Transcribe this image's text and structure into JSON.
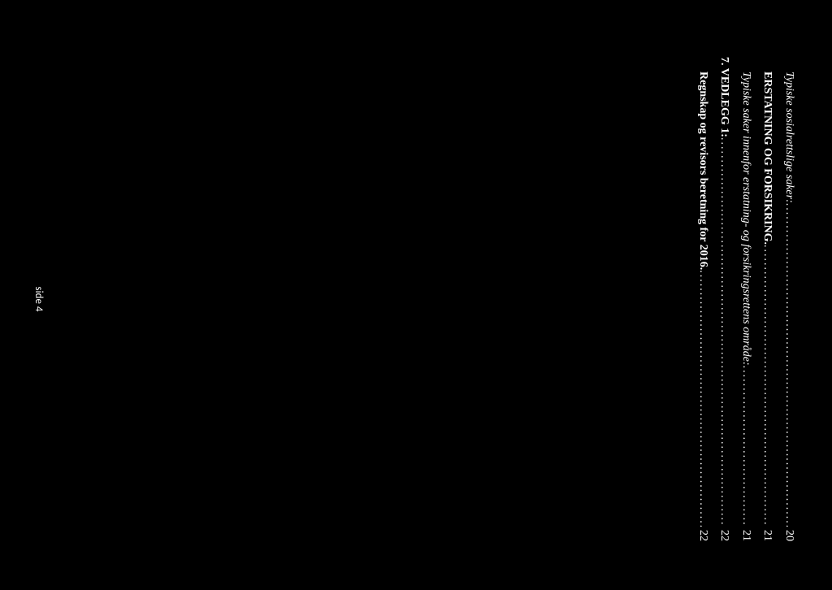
{
  "toc": {
    "entries": [
      {
        "label": "Typiske sosialrettslige saker:",
        "page": "20",
        "italic": true,
        "bold": false,
        "indent": 1
      },
      {
        "label": "ERSTATNING OG FORSIKRING.",
        "page": "21",
        "italic": false,
        "bold": true,
        "indent": 1
      },
      {
        "label": "Typiske saker innenfor erstatning- og forsikringsrettens område:",
        "page": "21",
        "italic": true,
        "bold": false,
        "indent": 1
      },
      {
        "label": "7. VEDLEGG 1:",
        "page": "22",
        "italic": false,
        "bold": true,
        "indent": 0
      },
      {
        "label": "Regnskap og revisors beretning for 2016.",
        "page": "22",
        "italic": false,
        "bold": true,
        "indent": 1
      }
    ]
  },
  "footer": {
    "text": "side 4"
  },
  "colors": {
    "background": "#000000",
    "text": "#ffffff"
  }
}
